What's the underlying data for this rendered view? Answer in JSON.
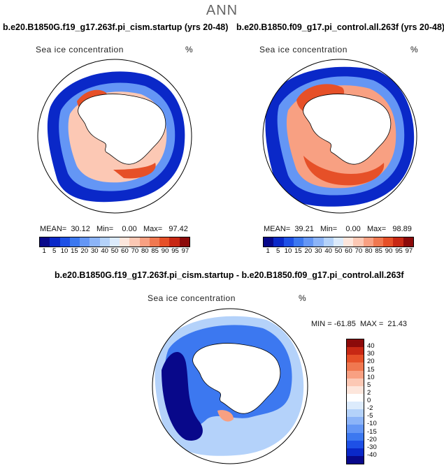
{
  "main_title": "ANN",
  "panel1": {
    "title": "b.e20.B1850G.f19_g17.263f.pi_cism.startup (yrs 20-48)",
    "var_label": "Sea ice concentration",
    "unit": "%",
    "stats": "MEAN=  30.12   Min=    0.00   Max=   97.42"
  },
  "panel2": {
    "title": "b.e20.B1850.f09_g17.pi_control.all.263f (yrs 20-48)",
    "var_label": "Sea ice concentration",
    "unit": "%",
    "stats": "MEAN=  39.21   Min=    0.00   Max=   98.89"
  },
  "diff_panel": {
    "title": "b.e20.B1850G.f19_g17.263f.pi_cism.startup - b.e20.B1850.f09_g17.pi_control.all.263f",
    "var_label": "Sea ice concentration",
    "unit": "%",
    "stats": "MIN = -61.85  MAX =  21.43"
  },
  "abs_colorbar": {
    "labels": [
      "1",
      "5",
      "10",
      "15",
      "20",
      "30",
      "40",
      "50",
      "60",
      "70",
      "80",
      "85",
      "90",
      "95",
      "97"
    ],
    "colors": [
      "#08088a",
      "#0a28c8",
      "#1e50e6",
      "#3c78f0",
      "#6496f5",
      "#8cb4f8",
      "#b4d2fa",
      "#dcebfc",
      "#fde6dc",
      "#fcc8b4",
      "#f8a082",
      "#f07850",
      "#e65028",
      "#c82814",
      "#8c0a0a"
    ]
  },
  "diff_colorbar": {
    "labels": [
      "40",
      "30",
      "20",
      "15",
      "10",
      "5",
      "2",
      "0",
      "-2",
      "-5",
      "-10",
      "-15",
      "-20",
      "-30",
      "-40"
    ],
    "colors": [
      "#8c0a0a",
      "#c82814",
      "#e65028",
      "#f07850",
      "#f8a082",
      "#fcc8b4",
      "#fde6dc",
      "#ffffff",
      "#dcebfc",
      "#b4d2fa",
      "#8cb4f8",
      "#6496f5",
      "#3c78f0",
      "#1e50e6",
      "#0a28c8",
      "#08088a"
    ]
  }
}
